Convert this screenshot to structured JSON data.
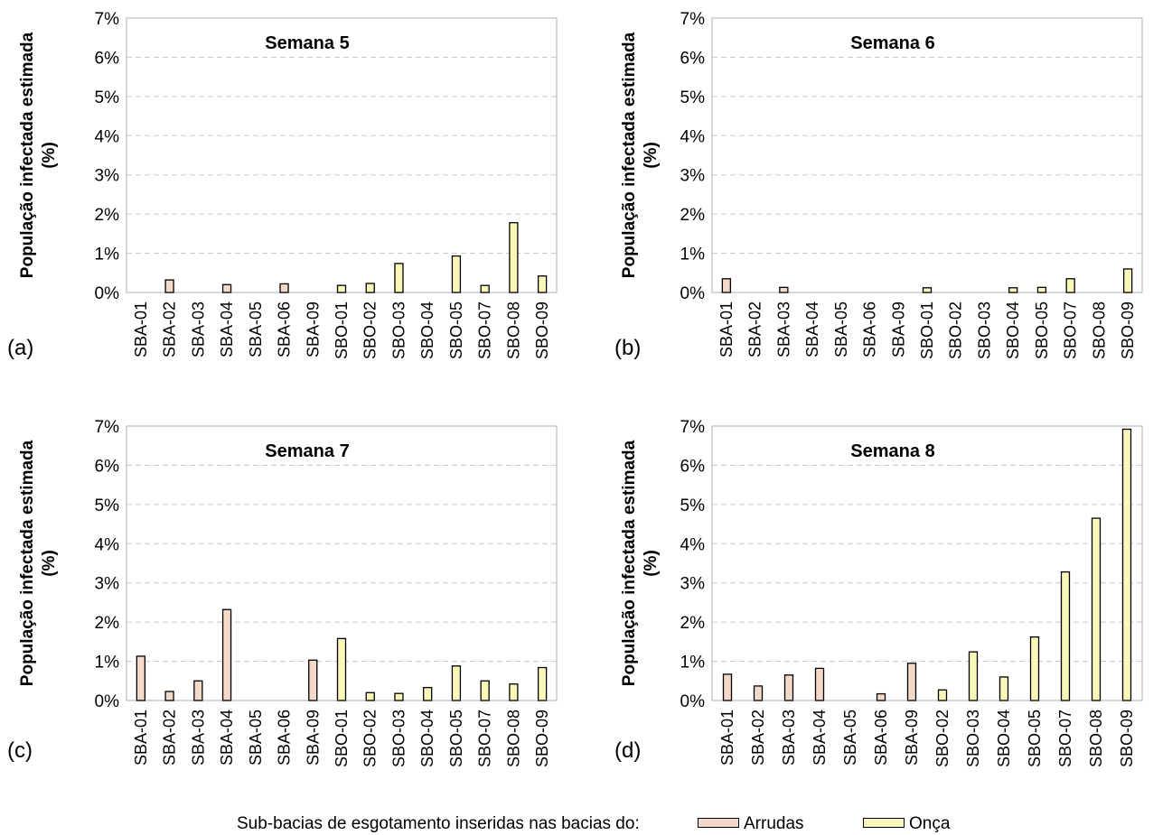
{
  "colors": {
    "arrudas": "#F3D9C8",
    "onca": "#FAF7B8",
    "stroke": "#000000",
    "grid": "#c8c8c8",
    "axis": "#bfbfbf"
  },
  "legend": {
    "caption": "Sub-bacias de esgotamento inseridas nas bacias do:",
    "arrudas_label": "Arrudas",
    "onca_label": "Onça"
  },
  "chart_data": [
    {
      "type": "bar",
      "panel_letter": "(a)",
      "title": "Semana 5",
      "ylabel": "População infectada estimada (%)",
      "ylim": [
        0,
        7
      ],
      "yticks": [
        "0%",
        "1%",
        "2%",
        "3%",
        "4%",
        "5%",
        "6%",
        "7%"
      ],
      "grid": true,
      "categories": [
        "SBA-01",
        "SBA-02",
        "SBA-03",
        "SBA-04",
        "SBA-05",
        "SBA-06",
        "SBA-09",
        "SBO-01",
        "SBO-02",
        "SBO-03",
        "SBO-04",
        "SBO-05",
        "SBO-07",
        "SBO-08",
        "SBO-09"
      ],
      "values": [
        0,
        0.32,
        0,
        0.2,
        0,
        0.22,
        0,
        0.18,
        0.23,
        0.74,
        0,
        0.93,
        0.18,
        1.78,
        0.42
      ],
      "basin": [
        "Arrudas",
        "Arrudas",
        "Arrudas",
        "Arrudas",
        "Arrudas",
        "Arrudas",
        "Arrudas",
        "Onça",
        "Onça",
        "Onça",
        "Onça",
        "Onça",
        "Onça",
        "Onça",
        "Onça"
      ]
    },
    {
      "type": "bar",
      "panel_letter": "(b)",
      "title": "Semana 6",
      "ylabel": "População infectada estimada (%)",
      "ylim": [
        0,
        7
      ],
      "yticks": [
        "0%",
        "1%",
        "2%",
        "3%",
        "4%",
        "5%",
        "6%",
        "7%"
      ],
      "grid": true,
      "categories": [
        "SBA-01",
        "SBA-02",
        "SBA-03",
        "SBA-04",
        "SBA-05",
        "SBA-06",
        "SBA-09",
        "SBO-01",
        "SBO-02",
        "SBO-03",
        "SBO-04",
        "SBO-05",
        "SBO-07",
        "SBO-08",
        "SBO-09"
      ],
      "values": [
        0.35,
        0,
        0.13,
        0,
        0,
        0,
        0,
        0.12,
        0,
        0,
        0.12,
        0.13,
        0.35,
        0,
        0.6
      ],
      "basin": [
        "Arrudas",
        "Arrudas",
        "Arrudas",
        "Arrudas",
        "Arrudas",
        "Arrudas",
        "Arrudas",
        "Onça",
        "Onça",
        "Onça",
        "Onça",
        "Onça",
        "Onça",
        "Onça",
        "Onça"
      ]
    },
    {
      "type": "bar",
      "panel_letter": "(c)",
      "title": "Semana 7",
      "ylabel": "População infectada estimada (%)",
      "ylim": [
        0,
        7
      ],
      "yticks": [
        "0%",
        "1%",
        "2%",
        "3%",
        "4%",
        "5%",
        "6%",
        "7%"
      ],
      "grid": true,
      "categories": [
        "SBA-01",
        "SBA-02",
        "SBA-03",
        "SBA-04",
        "SBA-05",
        "SBA-06",
        "SBA-09",
        "SBO-01",
        "SBO-02",
        "SBO-03",
        "SBO-04",
        "SBO-05",
        "SBO-07",
        "SBO-08",
        "SBO-09"
      ],
      "values": [
        1.13,
        0.23,
        0.5,
        2.32,
        0,
        0,
        1.03,
        1.58,
        0.2,
        0.18,
        0.33,
        0.88,
        0.5,
        0.42,
        0.84
      ],
      "basin": [
        "Arrudas",
        "Arrudas",
        "Arrudas",
        "Arrudas",
        "Arrudas",
        "Arrudas",
        "Arrudas",
        "Onça",
        "Onça",
        "Onça",
        "Onça",
        "Onça",
        "Onça",
        "Onça",
        "Onça"
      ]
    },
    {
      "type": "bar",
      "panel_letter": "(d)",
      "title": "Semana 8",
      "ylabel": "População infectada estimada (%)",
      "ylim": [
        0,
        7
      ],
      "yticks": [
        "0%",
        "1%",
        "2%",
        "3%",
        "4%",
        "5%",
        "6%",
        "7%"
      ],
      "grid": true,
      "categories": [
        "SBA-01",
        "SBA-02",
        "SBA-03",
        "SBA-04",
        "SBA-05",
        "SBA-06",
        "SBA-09",
        "SBO-02",
        "SBO-03",
        "SBO-04",
        "SBO-05",
        "SBO-07",
        "SBO-08",
        "SBO-09"
      ],
      "values": [
        0.67,
        0.37,
        0.65,
        0.82,
        0,
        0.17,
        0.95,
        0.27,
        1.24,
        0.6,
        1.62,
        3.28,
        4.65,
        6.92
      ],
      "basin": [
        "Arrudas",
        "Arrudas",
        "Arrudas",
        "Arrudas",
        "Arrudas",
        "Arrudas",
        "Arrudas",
        "Onça",
        "Onça",
        "Onça",
        "Onça",
        "Onça",
        "Onça",
        "Onça"
      ]
    }
  ]
}
